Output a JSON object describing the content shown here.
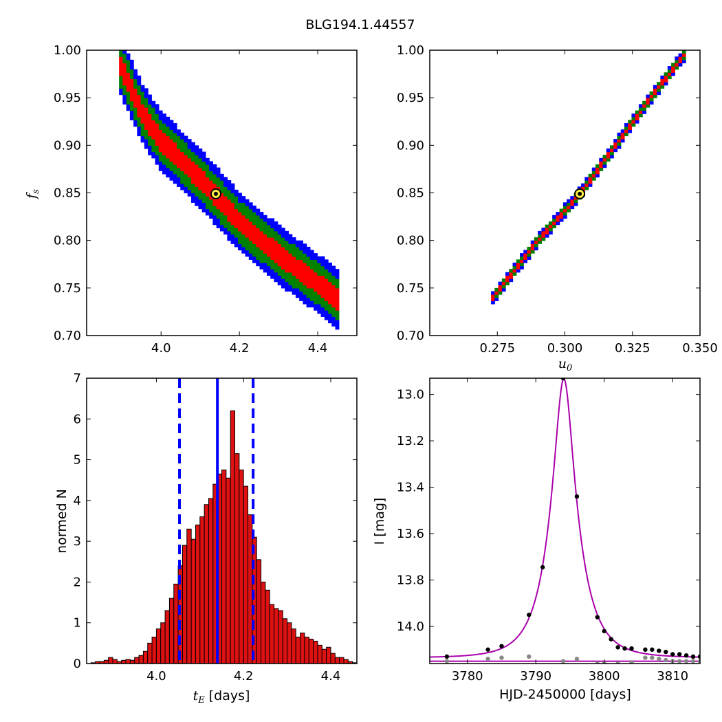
{
  "figure": {
    "title": "BLG194.1.44557"
  },
  "colors": {
    "sigma1": "#ff0000",
    "sigma2": "#008000",
    "sigma3": "#0000ff",
    "best": "#ffee44",
    "hist": "#dd1111",
    "model": "#aa00aa",
    "obs": "#000000",
    "resid": "#888888"
  },
  "chart_data": [
    {
      "type": "heatmap",
      "id": "tE_vs_fs",
      "title": "",
      "xlabel": "",
      "ylabel": "f_s",
      "ylabel_main": "f",
      "ylabel_sub": "s",
      "xlim": [
        3.81,
        4.5
      ],
      "ylim": [
        0.7,
        1.0
      ],
      "xticks": [
        "4.0",
        "4.2",
        "4.4"
      ],
      "yticks": [
        "0.70",
        "0.75",
        "0.80",
        "0.85",
        "0.90",
        "0.95",
        "1.00"
      ],
      "ridge": [
        [
          3.89,
          0.99
        ],
        [
          3.95,
          0.935
        ],
        [
          4.0,
          0.905
        ],
        [
          4.1,
          0.865
        ],
        [
          4.2,
          0.82
        ],
        [
          4.3,
          0.785
        ],
        [
          4.4,
          0.755
        ],
        [
          4.45,
          0.738
        ]
      ],
      "half_widths": {
        "sigma1": 0.011,
        "sigma2": 0.022,
        "sigma3": 0.031
      },
      "best_fit": {
        "x": 4.14,
        "y": 0.849
      }
    },
    {
      "type": "heatmap",
      "id": "u0_vs_fs",
      "title": "",
      "xlabel": "u_0",
      "xlabel_main": "u",
      "xlabel_sub": "0",
      "ylabel": "",
      "xlim": [
        0.25,
        0.35
      ],
      "ylim": [
        0.7,
        1.0
      ],
      "xticks": [
        "0.275",
        "0.300",
        "0.325",
        "0.350"
      ],
      "yticks": [
        "0.70",
        "0.75",
        "0.80",
        "0.85",
        "0.90",
        "0.95",
        "1.00"
      ],
      "ridge": [
        [
          0.2725,
          0.737
        ],
        [
          0.29,
          0.8
        ],
        [
          0.3055,
          0.849
        ],
        [
          0.32,
          0.905
        ],
        [
          0.333,
          0.955
        ],
        [
          0.344,
          0.995
        ]
      ],
      "half_widths": {
        "sigma1": 0.0025,
        "sigma2": 0.0048,
        "sigma3": 0.0068
      },
      "best_fit": {
        "x": 0.3055,
        "y": 0.849
      }
    },
    {
      "type": "bar",
      "id": "tE_histogram",
      "title": "",
      "xlabel": "t_E [days]",
      "xlabel_main": "t",
      "xlabel_sub": "E",
      "xlabel_unit": "[days]",
      "ylabel": "normed N",
      "xlim": [
        3.84,
        4.46
      ],
      "ylim": [
        0,
        7
      ],
      "xticks": [
        "4.0",
        "4.2",
        "4.4"
      ],
      "yticks": [
        "0",
        "1",
        "2",
        "3",
        "4",
        "5",
        "6",
        "7"
      ],
      "bin_start": 3.85,
      "bin_width": 0.01,
      "values": [
        0.02,
        0.05,
        0.05,
        0.08,
        0.15,
        0.1,
        0.05,
        0.08,
        0.1,
        0.08,
        0.15,
        0.2,
        0.3,
        0.5,
        0.65,
        0.85,
        1.0,
        1.3,
        1.6,
        1.95,
        2.4,
        2.9,
        3.3,
        3.05,
        3.4,
        3.6,
        3.9,
        4.05,
        4.4,
        4.65,
        4.75,
        4.55,
        6.2,
        5.15,
        4.75,
        4.35,
        3.65,
        3.1,
        2.55,
        2.0,
        1.8,
        1.45,
        1.35,
        1.3,
        1.1,
        1.0,
        0.85,
        0.65,
        0.75,
        0.65,
        0.6,
        0.55,
        0.45,
        0.35,
        0.4,
        0.25,
        0.15,
        0.15,
        0.1,
        0.05,
        0.02
      ],
      "best_fit_line": 4.14,
      "confidence_bounds": [
        4.053,
        4.222
      ]
    },
    {
      "type": "scatter",
      "id": "light_curve",
      "title": "",
      "xlabel": "HJD-2450000 [days]",
      "ylabel": "I [mag]",
      "xlim": [
        3774.5,
        3814
      ],
      "ylim": [
        14.16,
        12.93
      ],
      "inverted_y": true,
      "xticks": [
        "3780",
        "3790",
        "3800",
        "3810"
      ],
      "yticks": [
        "13.0",
        "13.2",
        "13.4",
        "13.6",
        "13.8",
        "14.0"
      ],
      "model": {
        "t0": 3794.1,
        "u0": 0.3055,
        "tE": 4.14,
        "fs": 0.849,
        "mbase": 14.135,
        "baseline2": 14.15
      },
      "observed": [
        [
          3777,
          14.13
        ],
        [
          3783,
          14.1
        ],
        [
          3785,
          14.085
        ],
        [
          3789,
          13.95
        ],
        [
          3791,
          13.745
        ],
        [
          3794,
          12.93
        ],
        [
          3796,
          13.44
        ],
        [
          3799,
          13.96
        ],
        [
          3800,
          14.02
        ],
        [
          3801,
          14.055
        ],
        [
          3802,
          14.09
        ],
        [
          3803,
          14.095
        ],
        [
          3804,
          14.095
        ],
        [
          3806,
          14.1
        ],
        [
          3807,
          14.1
        ],
        [
          3808,
          14.105
        ],
        [
          3809,
          14.11
        ],
        [
          3810,
          14.12
        ],
        [
          3811,
          14.12
        ],
        [
          3812,
          14.125
        ],
        [
          3813,
          14.13
        ],
        [
          3814,
          14.13
        ]
      ],
      "residuals": [
        [
          3777,
          14.15
        ],
        [
          3783,
          14.14
        ],
        [
          3785,
          14.135
        ],
        [
          3789,
          14.13
        ],
        [
          3794,
          14.15
        ],
        [
          3796,
          14.14
        ],
        [
          3799,
          14.16
        ],
        [
          3800,
          14.16
        ],
        [
          3802,
          14.16
        ],
        [
          3804,
          14.155
        ],
        [
          3806,
          14.135
        ],
        [
          3807,
          14.135
        ],
        [
          3808,
          14.14
        ],
        [
          3809,
          14.145
        ],
        [
          3810,
          14.15
        ],
        [
          3811,
          14.15
        ],
        [
          3812,
          14.15
        ],
        [
          3813,
          14.15
        ],
        [
          3814,
          14.15
        ]
      ]
    }
  ]
}
